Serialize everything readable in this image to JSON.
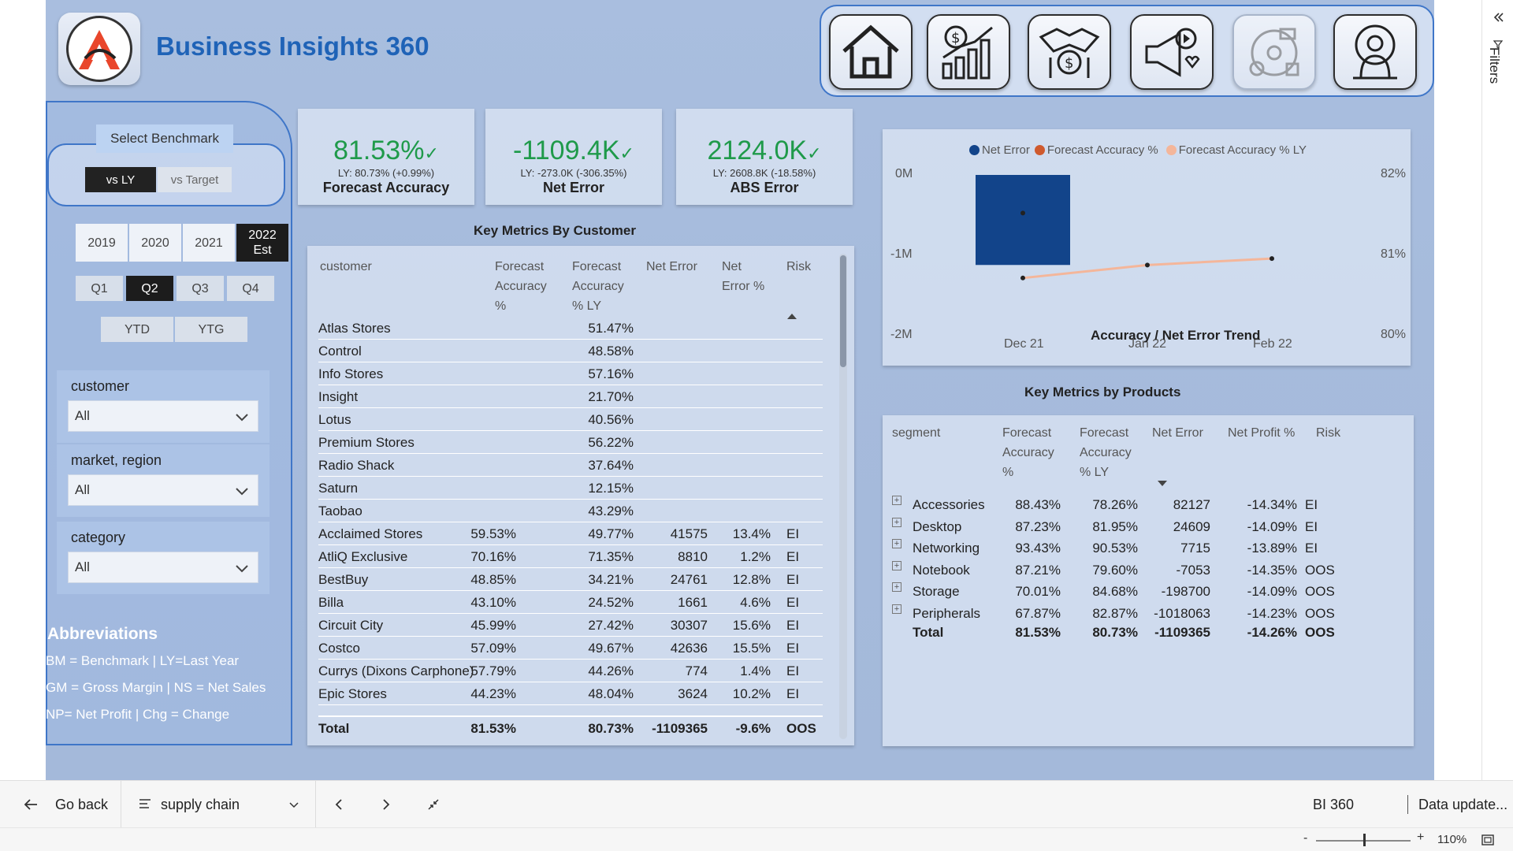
{
  "header": {
    "app_title": "Business Insights 360",
    "nav_icons": [
      "home-icon",
      "finance-icon",
      "sales-icon",
      "marketing-icon",
      "supply-chain-icon",
      "executive-icon"
    ]
  },
  "benchmark": {
    "title": "Select Benchmark",
    "options": [
      "vs LY",
      "vs Target"
    ],
    "selected": "vs LY"
  },
  "years": [
    {
      "label": "2019",
      "selected": false
    },
    {
      "label": "2020",
      "selected": false
    },
    {
      "label": "2021",
      "selected": false
    },
    {
      "label": "2022\nEst",
      "line1": "2022",
      "line2": "Est",
      "selected": true
    }
  ],
  "quarters": [
    {
      "label": "Q1",
      "selected": false
    },
    {
      "label": "Q2",
      "selected": true
    },
    {
      "label": "Q3",
      "selected": false
    },
    {
      "label": "Q4",
      "selected": false
    }
  ],
  "periods": [
    "YTD",
    "YTG"
  ],
  "filters": [
    {
      "label": "customer",
      "value": "All"
    },
    {
      "label": "market, region",
      "value": "All"
    },
    {
      "label": "category",
      "value": "All"
    }
  ],
  "abbreviations": {
    "title": "Abbreviations",
    "lines": [
      "BM = Benchmark | LY=Last Year",
      "GM = Gross Margin | NS = Net Sales",
      "NP= Net Profit | Chg = Change"
    ]
  },
  "kpis": [
    {
      "value": "81.53%",
      "ly": "LY: 80.73% (+0.99%)",
      "name": "Forecast Accuracy"
    },
    {
      "value": "-1109.4K",
      "ly": "LY: -273.0K (-306.35%)",
      "name": "Net Error"
    },
    {
      "value": "2124.0K",
      "ly": "LY: 2608.8K (-18.58%)",
      "name": "ABS Error"
    }
  ],
  "customer_table": {
    "title": "Key Metrics By Customer",
    "headers": [
      "customer",
      "Forecast\nAccuracy\n%",
      "Forecast\nAccuracy\n% LY",
      "Net Error",
      "Net\nError %",
      "Risk"
    ],
    "header_lines": [
      [
        "customer"
      ],
      [
        "Forecast",
        "Accuracy",
        "%"
      ],
      [
        "Forecast",
        "Accuracy",
        "% LY"
      ],
      [
        "Net Error"
      ],
      [
        "Net",
        "Error %"
      ],
      [
        "Risk"
      ]
    ],
    "rows": [
      [
        "Atlas Stores",
        "",
        "51.47%",
        "",
        "",
        ""
      ],
      [
        "Control",
        "",
        "48.58%",
        "",
        "",
        ""
      ],
      [
        "Info Stores",
        "",
        "57.16%",
        "",
        "",
        ""
      ],
      [
        "Insight",
        "",
        "21.70%",
        "",
        "",
        ""
      ],
      [
        "Lotus",
        "",
        "40.56%",
        "",
        "",
        ""
      ],
      [
        "Premium Stores",
        "",
        "56.22%",
        "",
        "",
        ""
      ],
      [
        "Radio Shack",
        "",
        "37.64%",
        "",
        "",
        ""
      ],
      [
        "Saturn",
        "",
        "12.15%",
        "",
        "",
        ""
      ],
      [
        "Taobao",
        "",
        "43.29%",
        "",
        "",
        ""
      ],
      [
        "Acclaimed Stores",
        "59.53%",
        "49.77%",
        "41575",
        "13.4%",
        "EI"
      ],
      [
        "AtliQ Exclusive",
        "70.16%",
        "71.35%",
        "8810",
        "1.2%",
        "EI"
      ],
      [
        "BestBuy",
        "48.85%",
        "34.21%",
        "24761",
        "12.8%",
        "EI"
      ],
      [
        "Billa",
        "43.10%",
        "24.52%",
        "1661",
        "4.6%",
        "EI"
      ],
      [
        "Circuit City",
        "45.99%",
        "27.42%",
        "30307",
        "15.6%",
        "EI"
      ],
      [
        "Costco",
        "57.09%",
        "49.67%",
        "42636",
        "15.5%",
        "EI"
      ],
      [
        "Currys (Dixons Carphone)",
        "57.79%",
        "44.26%",
        "774",
        "1.4%",
        "EI"
      ],
      [
        "Epic Stores",
        "44.23%",
        "48.04%",
        "3624",
        "10.2%",
        "EI"
      ]
    ],
    "total": [
      "Total",
      "81.53%",
      "80.73%",
      "-1109365",
      "-9.6%",
      "OOS"
    ]
  },
  "trend_chart": {
    "title": "Accuracy / Net Error Trend",
    "legend": [
      {
        "name": "Net Error",
        "color": "#12448a"
      },
      {
        "name": "Forecast Accuracy %",
        "color": "#cf5a2e"
      },
      {
        "name": "Forecast Accuracy % LY",
        "color": "#f4b69a"
      }
    ],
    "left_ticks": [
      "0M",
      "-1M",
      "-2M"
    ],
    "right_ticks": [
      "82%",
      "81%",
      "80%"
    ],
    "x_ticks": [
      "Dec 21",
      "Jan 22",
      "Feb 22"
    ]
  },
  "chart_data": {
    "type": "bar",
    "title": "Accuracy / Net Error Trend",
    "categories": [
      "Dec 21",
      "Jan 22",
      "Feb 22"
    ],
    "series": [
      {
        "name": "Net Error",
        "type": "bar",
        "axis": "left",
        "values": [
          -1109365,
          null,
          null
        ]
      },
      {
        "name": "Forecast Accuracy %",
        "type": "line",
        "axis": "right",
        "values": [
          81.53,
          null,
          null
        ]
      },
      {
        "name": "Forecast Accuracy % LY",
        "type": "line",
        "axis": "right",
        "values": [
          80.73,
          80.89,
          80.97
        ]
      }
    ],
    "ylim_left": [
      -2000000,
      0
    ],
    "ylim_right": [
      80,
      82
    ],
    "legend": "top"
  },
  "products_table": {
    "title": "Key Metrics by Products",
    "header_lines": [
      [
        "segment"
      ],
      [
        "Forecast",
        "Accuracy",
        "%"
      ],
      [
        "Forecast",
        "Accuracy",
        "% LY"
      ],
      [
        "Net Error"
      ],
      [
        "Net Profit %"
      ],
      [
        "Risk"
      ]
    ],
    "rows": [
      [
        "Accessories",
        "88.43%",
        "78.26%",
        "82127",
        "-14.34%",
        "EI"
      ],
      [
        "Desktop",
        "87.23%",
        "81.95%",
        "24609",
        "-14.09%",
        "EI"
      ],
      [
        "Networking",
        "93.43%",
        "90.53%",
        "7715",
        "-13.89%",
        "EI"
      ],
      [
        "Notebook",
        "87.21%",
        "79.60%",
        "-7053",
        "-14.35%",
        "OOS"
      ],
      [
        "Storage",
        "70.01%",
        "84.68%",
        "-198700",
        "-14.09%",
        "OOS"
      ],
      [
        "Peripherals",
        "67.87%",
        "82.87%",
        "-1018063",
        "-14.23%",
        "OOS"
      ]
    ],
    "total": [
      "Total",
      "81.53%",
      "80.73%",
      "-1109365",
      "-14.26%",
      "OOS"
    ]
  },
  "bottom_bar": {
    "go_back": "Go back",
    "page_name": "supply chain",
    "report_name": "BI 360",
    "data_update": "Data update...",
    "zoom": "110%"
  },
  "filters_pane": {
    "label": "Filters"
  }
}
